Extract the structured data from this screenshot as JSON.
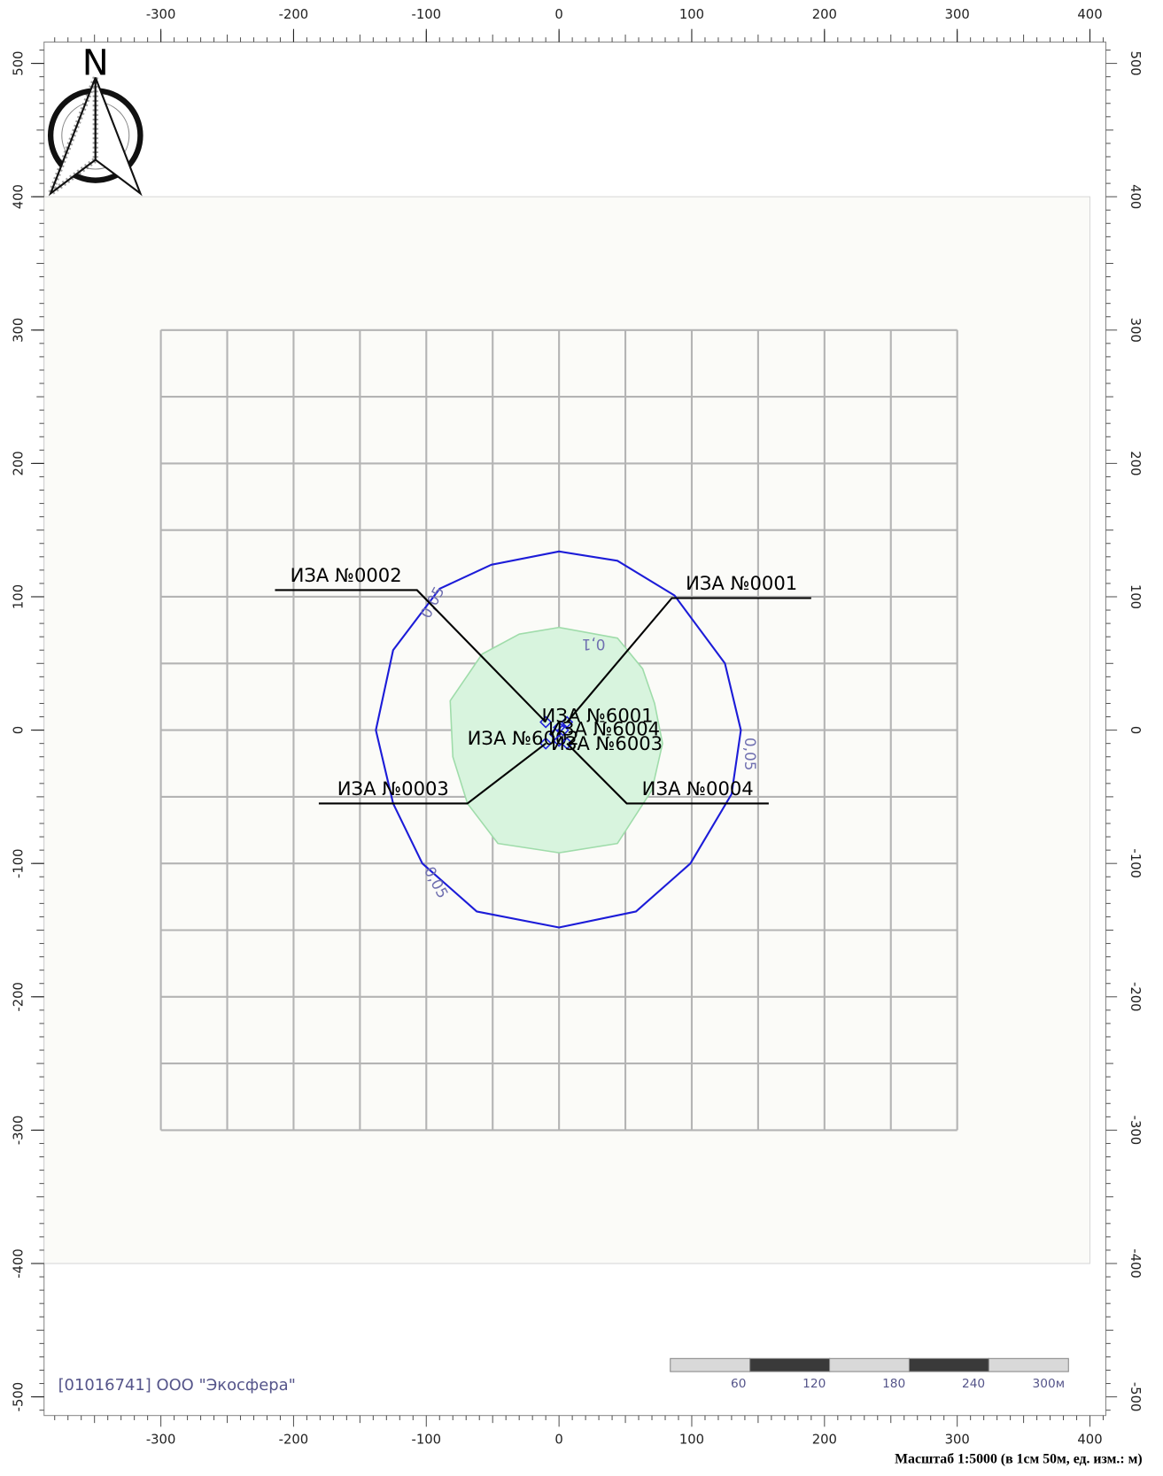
{
  "chart_data": {
    "type": "map",
    "xlim": [
      -388,
      412
    ],
    "ylim": [
      -514,
      516
    ],
    "xticks": [
      -300,
      -200,
      -100,
      0,
      100,
      200,
      300,
      400
    ],
    "yticks": [
      500,
      400,
      300,
      200,
      100,
      0,
      -100,
      -200,
      -300,
      -400,
      -500
    ],
    "minor_tick_interval": 10,
    "map_area": {
      "xlim": [
        -388,
        400
      ],
      "ylim": [
        -400,
        400
      ]
    },
    "calc_grid": {
      "xlim": [
        -300,
        300
      ],
      "ylim": [
        -300,
        300
      ],
      "step": 50
    },
    "contours": [
      {
        "level_label": "0,1",
        "color": "#9fdcaa",
        "fill": "#d8f4de",
        "x": [
          0,
          44,
          63,
          72,
          78,
          70,
          44,
          0,
          -46,
          -69,
          -80,
          -82,
          -58,
          -30
        ],
        "y": [
          77,
          69,
          46,
          20,
          -10,
          -45,
          -85,
          -92,
          -85,
          -55,
          -20,
          22,
          57,
          72
        ]
      },
      {
        "level_label": "0,05",
        "color": "#1c1cd8",
        "fill": "none",
        "x": [
          0,
          44,
          87,
          125,
          137,
          130,
          99,
          58,
          0,
          -62,
          -103,
          -125,
          -138,
          -125,
          -90,
          -51
        ],
        "y": [
          134,
          127,
          101,
          50,
          0,
          -48,
          -100,
          -136,
          -148,
          -136,
          -100,
          -55,
          0,
          60,
          106,
          124
        ]
      }
    ],
    "contour_labels": [
      {
        "text": "0,05",
        "x": -96,
        "y": -116
      },
      {
        "text": "0,05",
        "x": 140,
        "y": -18
      },
      {
        "text": "0,05",
        "x": -92,
        "y": 94
      },
      {
        "text": "0,1",
        "x": 26,
        "y": 68
      }
    ],
    "sources": [
      {
        "label": "ИЗА №0001",
        "x": 6,
        "y": 6,
        "leader": [
          [
            85,
            99
          ],
          [
            190,
            99
          ]
        ]
      },
      {
        "label": "ИЗА №0002",
        "x": -10,
        "y": 6,
        "leader": [
          [
            -107,
            105
          ],
          [
            -214,
            105
          ]
        ]
      },
      {
        "label": "ИЗА №0003",
        "x": -10,
        "y": -10,
        "leader": [
          [
            -69,
            -55
          ],
          [
            -181,
            -55
          ]
        ]
      },
      {
        "label": "ИЗА №0004",
        "x": 6,
        "y": -10,
        "leader": [
          [
            51,
            -55
          ],
          [
            158,
            -55
          ]
        ]
      },
      {
        "label": "ИЗА №6001",
        "x": 0,
        "y": 2,
        "label_at": [
          29,
          11
        ]
      },
      {
        "label": "ИЗА №6002",
        "x": -3,
        "y": -3,
        "label_at": [
          -27,
          -6
        ]
      },
      {
        "label": "ИЗА №6004",
        "x": 3,
        "y": 0,
        "label_at": [
          34,
          1
        ]
      },
      {
        "label": "ИЗА №6003",
        "x": 0,
        "y": -8,
        "label_at": [
          36,
          -10
        ]
      }
    ]
  },
  "north_label": "N",
  "company": "[01016741] ООО \"Экосфера\"",
  "scale_bar": {
    "ticks": [
      60,
      120,
      180,
      240,
      {
        "value": 300,
        "label": "300м"
      }
    ]
  },
  "footer": "Масштаб 1:5000 (в 1см 50м, ед. изм.: м)"
}
